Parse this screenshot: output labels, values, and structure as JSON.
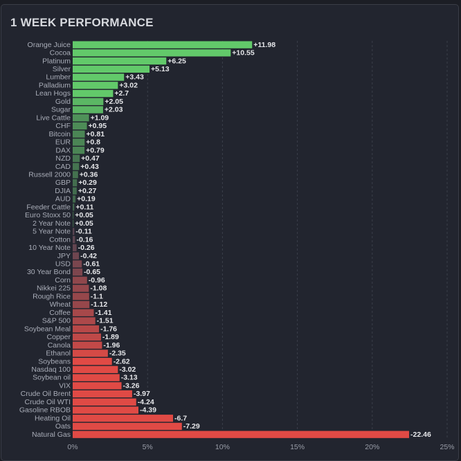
{
  "chart_data": {
    "type": "bar",
    "orientation": "horizontal",
    "title": "1 WEEK PERFORMANCE",
    "xlabel": "",
    "ylabel": "",
    "xlim": [
      0,
      25
    ],
    "x_ticks": [
      "0%",
      "5%",
      "10%",
      "15%",
      "20%",
      "25%"
    ],
    "x_tick_values": [
      0,
      5,
      10,
      15,
      20,
      25
    ],
    "grid": "vertical dashed",
    "bar_length": "absolute value",
    "colors": {
      "pos_bright": "#62c96a",
      "pos_dull": "#3c5a48",
      "neg_bright": "#e04a45",
      "neg_dull": "#4c4452"
    },
    "categories": [
      "Orange Juice",
      "Cocoa",
      "Platinum",
      "Silver",
      "Lumber",
      "Palladium",
      "Lean Hogs",
      "Gold",
      "Sugar",
      "Live Cattle",
      "CHF",
      "Bitcoin",
      "EUR",
      "DAX",
      "NZD",
      "CAD",
      "Russell 2000",
      "GBP",
      "DJIA",
      "AUD",
      "Feeder Cattle",
      "Euro Stoxx 50",
      "2 Year Note",
      "5 Year Note",
      "Cotton",
      "10 Year Note",
      "JPY",
      "USD",
      "30 Year Bond",
      "Corn",
      "Nikkei 225",
      "Rough Rice",
      "Wheat",
      "Coffee",
      "S&P 500",
      "Soybean Meal",
      "Copper",
      "Canola",
      "Ethanol",
      "Soybeans",
      "Nasdaq 100",
      "Soybean oil",
      "VIX",
      "Crude Oil Brent",
      "Crude Oil WTI",
      "Gasoline RBOB",
      "Heating Oil",
      "Oats",
      "Natural Gas"
    ],
    "values": [
      11.98,
      10.55,
      6.25,
      5.13,
      3.43,
      3.02,
      2.7,
      2.05,
      2.03,
      1.09,
      0.95,
      0.81,
      0.8,
      0.79,
      0.47,
      0.43,
      0.36,
      0.29,
      0.27,
      0.19,
      0.11,
      0.05,
      0.05,
      -0.11,
      -0.16,
      -0.26,
      -0.42,
      -0.61,
      -0.65,
      -0.96,
      -1.08,
      -1.1,
      -1.12,
      -1.41,
      -1.51,
      -1.76,
      -1.89,
      -1.96,
      -2.35,
      -2.62,
      -3.02,
      -3.13,
      -3.26,
      -3.97,
      -4.24,
      -4.39,
      -6.7,
      -7.29,
      -22.46
    ],
    "value_labels": [
      "+11.98",
      "+10.55",
      "+6.25",
      "+5.13",
      "+3.43",
      "+3.02",
      "+2.7",
      "+2.05",
      "+2.03",
      "+1.09",
      "+0.95",
      "+0.81",
      "+0.8",
      "+0.79",
      "+0.47",
      "+0.43",
      "+0.36",
      "+0.29",
      "+0.27",
      "+0.19",
      "+0.11",
      "+0.05",
      "+0.05",
      "-0.11",
      "-0.16",
      "-0.26",
      "-0.42",
      "-0.61",
      "-0.65",
      "-0.96",
      "-1.08",
      "-1.1",
      "-1.12",
      "-1.41",
      "-1.51",
      "-1.76",
      "-1.89",
      "-1.96",
      "-2.35",
      "-2.62",
      "-3.02",
      "-3.13",
      "-3.26",
      "-3.97",
      "-4.24",
      "-4.39",
      "-6.7",
      "-7.29",
      "-22.46"
    ]
  }
}
